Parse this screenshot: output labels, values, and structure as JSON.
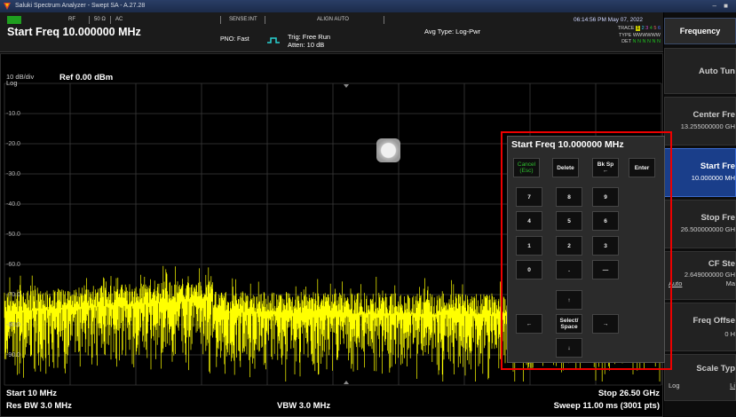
{
  "titlebar": {
    "title": "Saluki Spectrum Analyzer - Swept SA - A.27.28",
    "buttons": "– ■"
  },
  "status": {
    "rf": "RF",
    "impedance": "50 Ω",
    "coupling": "AC",
    "sense": "SENSE:INT",
    "align": "ALIGN AUTO",
    "datetime": "06:14:56 PM May 07, 2022",
    "current_setting": "Start Freq 10.000000 MHz",
    "pno": "PNO: Fast",
    "trig": "Trig: Free Run",
    "atten": "Atten: 10 dB",
    "avg_type": "Avg Type: Log-Pwr",
    "trace_label": "TRACE",
    "trace_active": "1",
    "trace_others": [
      "2",
      "3",
      "4",
      "5",
      "6"
    ],
    "type_label": "TYPE",
    "type_value": "WWWWWW",
    "det_label": "DET",
    "det_value": "N N N N N N"
  },
  "plot": {
    "scale": "10 dB/div",
    "scale_type": "Log",
    "ref": "Ref 0.00 dBm",
    "y_labels": [
      "-10.0",
      "-20.0",
      "-30.0",
      "-40.0",
      "-50.0",
      "-60.0",
      "-70.0",
      "-80.0",
      "-90.0"
    ],
    "start": "Start 10 MHz",
    "stop": "Stop 26.50 GHz",
    "res_bw": "Res BW 3.0 MHz",
    "vbw": "VBW 3.0 MHz",
    "sweep": "Sweep  11.00 ms (3001 pts)",
    "trace_color": "#ffff00"
  },
  "softkeys": {
    "header": "Frequency",
    "auto_tune": "Auto Tun",
    "center_freq": "Center Fre",
    "center_value": "13.255000000 GH",
    "start_freq": "Start Fre",
    "start_value": "10.000000 MH",
    "stop_freq": "Stop Fre",
    "stop_value": "26.500000000 GH",
    "cf_step": "CF Ste",
    "cf_step_value": "2.649000000 GH",
    "cf_auto": "Auto",
    "cf_man": "Ma",
    "freq_offset": "Freq Offse",
    "freq_offset_value": "0 H",
    "scale_type": "Scale Typ",
    "scale_log": "Log",
    "scale_lin": "Li"
  },
  "keypad": {
    "title": "Start Freq 10.000000 MHz",
    "cancel": "Cancel (Esc)",
    "delete": "Delete",
    "bksp": "Bk Sp",
    "bksp_arrow": "←",
    "enter": "Enter",
    "k7": "7",
    "k8": "8",
    "k9": "9",
    "k4": "4",
    "k5": "5",
    "k6": "6",
    "k1": "1",
    "k2": "2",
    "k3": "3",
    "k0": "0",
    "dot": ".",
    "minus": "—",
    "up": "↑",
    "left": "←",
    "select": "Select/ Space",
    "right": "→",
    "down": "↓"
  }
}
